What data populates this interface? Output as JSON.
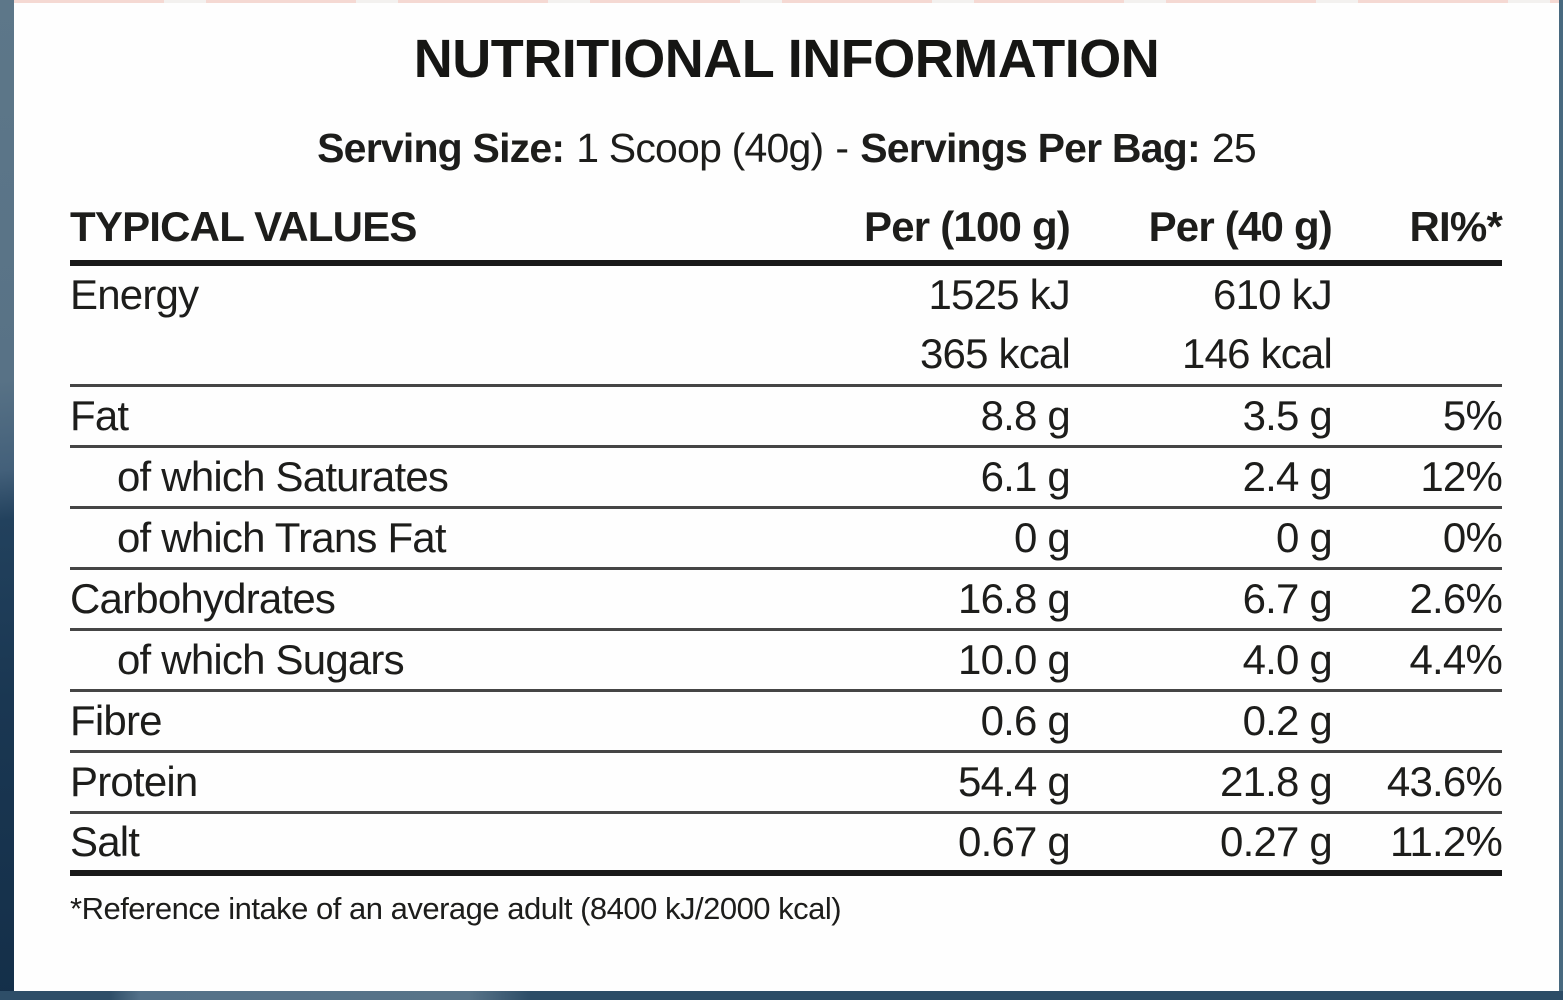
{
  "title": "NUTRITIONAL INFORMATION",
  "serving": {
    "size_label": "Serving Size:",
    "size_value": "1 Scoop (40g)",
    "separator": "-",
    "bag_label": "Servings Per Bag:",
    "bag_value": "25"
  },
  "table": {
    "headers": [
      "TYPICAL VALUES",
      "Per (100 g)",
      "Per (40 g)",
      "RI%*"
    ],
    "rows": [
      {
        "label": "Energy",
        "per100": "1525 kJ",
        "per40": "610 kJ",
        "ri": ""
      },
      {
        "label": "",
        "per100": "365 kcal",
        "per40": "146 kcal",
        "ri": ""
      },
      {
        "label": "Fat",
        "per100": "8.8 g",
        "per40": "3.5 g",
        "ri": "5%"
      },
      {
        "label": "of which Saturates",
        "per100": "6.1 g",
        "per40": "2.4 g",
        "ri": "12%"
      },
      {
        "label": "of which Trans Fat",
        "per100": "0 g",
        "per40": "0 g",
        "ri": "0%"
      },
      {
        "label": "Carbohydrates",
        "per100": "16.8 g",
        "per40": "6.7 g",
        "ri": "2.6%"
      },
      {
        "label": "of which Sugars",
        "per100": "10.0 g",
        "per40": "4.0 g",
        "ri": "4.4%"
      },
      {
        "label": "Fibre",
        "per100": "0.6 g",
        "per40": "0.2 g",
        "ri": ""
      },
      {
        "label": "Protein",
        "per100": "54.4 g",
        "per40": "21.8 g",
        "ri": "43.6%"
      },
      {
        "label": "Salt",
        "per100": "0.67 g",
        "per40": "0.27 g",
        "ri": "11.2%"
      }
    ]
  },
  "footnote": "*Reference intake of an average adult (8400 kJ/2000 kcal)",
  "colors": {
    "text": "#1d1d1b",
    "frame_navy_dark": "#142f49",
    "frame_navy_light": "#5d7789",
    "divider_thin": "#454545",
    "divider_thick": "#191919",
    "top_strip_pink": "#f5d9d3"
  }
}
